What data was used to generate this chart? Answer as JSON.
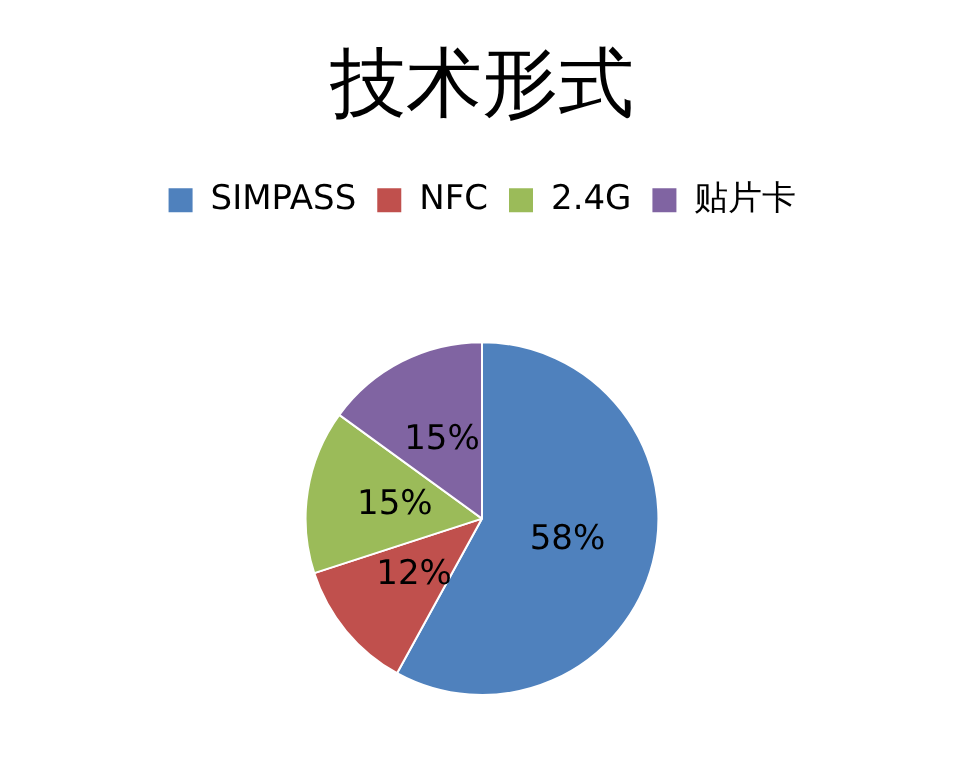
{
  "chart_data": {
    "type": "pie",
    "title": "技术形式",
    "categories": [
      "SIMPASS",
      "NFC",
      "2.4G",
      "贴片卡"
    ],
    "values": [
      58,
      12,
      15,
      15
    ],
    "colors": [
      "#4f81bd",
      "#c0504d",
      "#9bbb59",
      "#8064a2"
    ],
    "legend": "top",
    "value_labels": [
      "58%",
      "12%",
      "15%",
      "15%"
    ]
  }
}
